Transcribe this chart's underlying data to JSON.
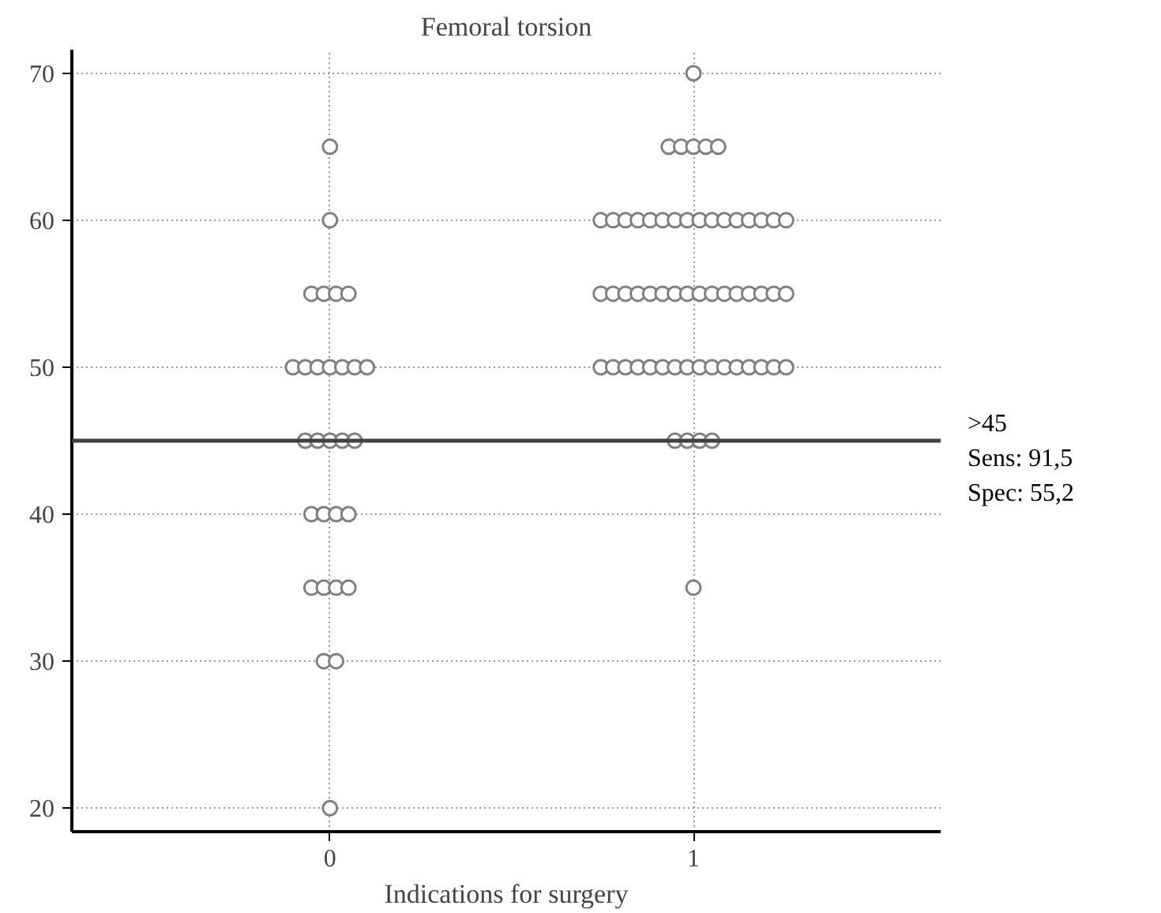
{
  "chart_data": {
    "type": "scatter",
    "title": "Femoral torsion",
    "xlabel": "Indications for surgery",
    "x": [
      0,
      0,
      -0.051,
      -0.017,
      0.017,
      0.051,
      -0.102,
      -0.068,
      -0.034,
      0,
      0.034,
      0.068,
      0.102,
      -0.068,
      -0.034,
      0,
      0.034,
      0.068,
      -0.051,
      -0.017,
      0.017,
      0.051,
      -0.051,
      -0.017,
      0.017,
      0.051,
      -0.017,
      0.017,
      0,
      1,
      0.932,
      0.966,
      1,
      1.034,
      1.068,
      0.745,
      0.779,
      0.813,
      0.847,
      0.881,
      0.915,
      0.949,
      0.983,
      1.017,
      1.051,
      1.085,
      1.119,
      1.153,
      1.187,
      1.221,
      1.255,
      0.745,
      0.779,
      0.813,
      0.847,
      0.881,
      0.915,
      0.949,
      0.983,
      1.017,
      1.051,
      1.085,
      1.119,
      1.153,
      1.187,
      1.221,
      1.255,
      0.745,
      0.779,
      0.813,
      0.847,
      0.881,
      0.915,
      0.949,
      0.983,
      1.017,
      1.051,
      1.085,
      1.119,
      1.153,
      1.187,
      1.221,
      1.255,
      0.949,
      0.983,
      1.017,
      1.051,
      1
    ],
    "values": [
      65,
      60,
      55,
      55,
      55,
      55,
      50,
      50,
      50,
      50,
      50,
      50,
      50,
      45,
      45,
      45,
      45,
      45,
      40,
      40,
      40,
      40,
      35,
      35,
      35,
      35,
      30,
      30,
      20,
      70,
      65,
      65,
      65,
      65,
      65,
      60,
      60,
      60,
      60,
      60,
      60,
      60,
      60,
      60,
      60,
      60,
      60,
      60,
      60,
      60,
      60,
      55,
      55,
      55,
      55,
      55,
      55,
      55,
      55,
      55,
      55,
      55,
      55,
      55,
      55,
      55,
      55,
      50,
      50,
      50,
      50,
      50,
      50,
      50,
      50,
      50,
      50,
      50,
      50,
      50,
      50,
      50,
      50,
      45,
      45,
      45,
      45,
      35
    ],
    "color": "#808080",
    "marker": "circle",
    "xlim": [
      -0.71,
      1.68
    ],
    "xticks": [
      0,
      1
    ],
    "ylim": [
      18.4,
      71.6
    ],
    "yticks": [
      20,
      30,
      40,
      50,
      60,
      70
    ],
    "grid": true,
    "ref_lines": [
      {
        "axis": "y",
        "value": 45,
        "label": ">45",
        "color": "#404040"
      }
    ],
    "annotations": [
      "Sens: 91,5",
      "Spec: 55,2"
    ]
  }
}
